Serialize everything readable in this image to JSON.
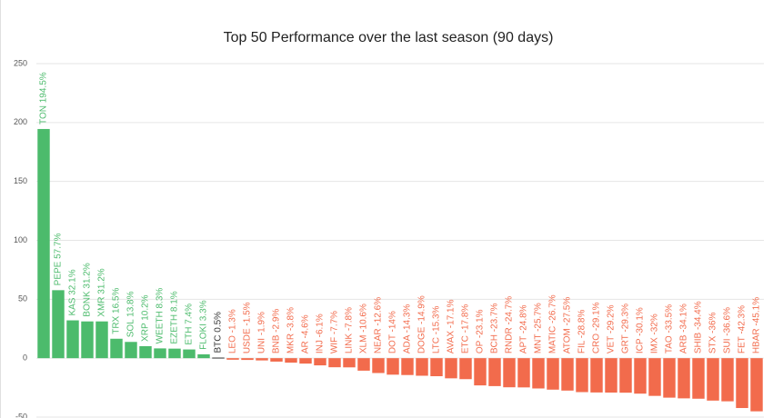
{
  "chart_data": {
    "type": "bar",
    "title": "Top 50 Performance over the last season (90 days)",
    "values": [
      194.5,
      57.7,
      32.1,
      31.2,
      31.2,
      16.5,
      13.8,
      10.2,
      8.3,
      8.1,
      7.4,
      3.3,
      0.5,
      -1.3,
      -1.5,
      -1.9,
      -2.9,
      -3.8,
      -4.6,
      -6.1,
      -7.7,
      -7.8,
      -10.6,
      -12.6,
      -14,
      -14.3,
      -14.9,
      -15.3,
      -17.1,
      -17.8,
      -23.1,
      -23.7,
      -24.7,
      -24.8,
      -25.7,
      -26.7,
      -27.5,
      -28.8,
      -29.1,
      -29.2,
      -29.3,
      -30.1,
      -32,
      -33.5,
      -34.1,
      -34.4,
      -36,
      -36.6,
      -42.3,
      -45.1
    ],
    "value_labels": [
      "TON 194.5%",
      "PEPE 57.7%",
      "KAS 32.1%",
      "BONK 31.2%",
      "XMR 31.2%",
      "TRX 16.5%",
      "SOL 13.8%",
      "XRP 10.2%",
      "WEETH 8.3%",
      "EZETH 8.1%",
      "ETH 7.4%",
      "FLOKI 3.3%",
      "BTC 0.5%",
      "LEO -1.3%",
      "USDE -1.5%",
      "UNI -1.9%",
      "BNB -2.9%",
      "MKR -3.8%",
      "AR -4.6%",
      "INJ -6.1%",
      "WIF -7.7%",
      "LINK -7.8%",
      "XLM -10.6%",
      "NEAR -12.6%",
      "DOT -14%",
      "ADA -14.3%",
      "DOGE -14.9%",
      "LTC -15.3%",
      "AVAX -17.1%",
      "ETC -17.8%",
      "OP -23.1%",
      "BCH -23.7%",
      "RNDR -24.7%",
      "APT -24.8%",
      "MNT -25.7%",
      "MATIC -26.7%",
      "ATOM -27.5%",
      "FIL -28.8%",
      "CRO -29.1%",
      "VET -29.2%",
      "GRT -29.3%",
      "ICP -30.1%",
      "IMX -32%",
      "TAO -33.5%",
      "ARB -34.1%",
      "SHIB -34.4%",
      "STX -36%",
      "SUI -36.6%",
      "FET -42.3%",
      "HBAR -45.1%"
    ],
    "colors": [
      "#4cbb6c",
      "#4cbb6c",
      "#4cbb6c",
      "#4cbb6c",
      "#4cbb6c",
      "#4cbb6c",
      "#4cbb6c",
      "#4cbb6c",
      "#4cbb6c",
      "#4cbb6c",
      "#4cbb6c",
      "#4cbb6c",
      "#333333",
      "#f26b4c",
      "#f26b4c",
      "#f26b4c",
      "#f26b4c",
      "#f26b4c",
      "#f26b4c",
      "#f26b4c",
      "#f26b4c",
      "#f26b4c",
      "#f26b4c",
      "#f26b4c",
      "#f26b4c",
      "#f26b4c",
      "#f26b4c",
      "#f26b4c",
      "#f26b4c",
      "#f26b4c",
      "#f26b4c",
      "#f26b4c",
      "#f26b4c",
      "#f26b4c",
      "#f26b4c",
      "#f26b4c",
      "#f26b4c",
      "#f26b4c",
      "#f26b4c",
      "#f26b4c",
      "#f26b4c",
      "#f26b4c",
      "#f26b4c",
      "#f26b4c",
      "#f26b4c",
      "#f26b4c",
      "#f26b4c",
      "#f26b4c",
      "#f26b4c",
      "#f26b4c"
    ],
    "ylim": [
      -50,
      250
    ],
    "yticks": [
      -50,
      0,
      50,
      100,
      150,
      200,
      250
    ],
    "grid": true
  }
}
